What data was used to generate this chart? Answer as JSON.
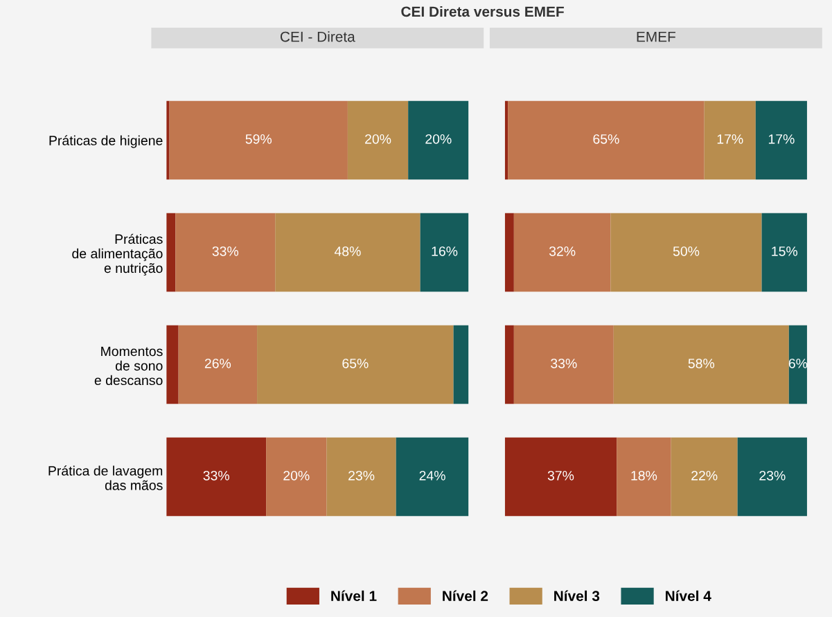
{
  "chart_data": [
    {
      "type": "bar",
      "title": "CEI - Direta",
      "orientation": "horizontal",
      "stacked": true,
      "xlim": [
        0,
        100
      ],
      "tick_labels": "y",
      "legend": "bottom",
      "annotations": [
        "CEI Direta versus EMEF"
      ],
      "categories": [
        "Práticas de higiene",
        "Práticas\nde alimentação\ne nutrição",
        "Momentos\nde sono\ne descanso",
        "Prática de lavagem\ndas mãos"
      ],
      "series": [
        {
          "name": "Nível 1",
          "color": "#962817",
          "values": [
            1,
            3,
            4,
            33
          ],
          "value_labels": [
            null,
            null,
            null,
            "33%"
          ]
        },
        {
          "name": "Nível 2",
          "color": "#c1774f",
          "values": [
            59,
            33,
            26,
            20
          ],
          "value_labels": [
            "59%",
            "33%",
            "26%",
            "20%"
          ]
        },
        {
          "name": "Nível 3",
          "color": "#b88d4e",
          "values": [
            20,
            48,
            65,
            23
          ],
          "value_labels": [
            "20%",
            "48%",
            "65%",
            "23%"
          ]
        },
        {
          "name": "Nível 4",
          "color": "#155c5b",
          "values": [
            20,
            16,
            5,
            24
          ],
          "value_labels": [
            "20%",
            "16%",
            null,
            "24%"
          ]
        }
      ]
    },
    {
      "type": "bar",
      "title": "EMEF",
      "orientation": "horizontal",
      "stacked": true,
      "xlim": [
        0,
        100
      ],
      "tick_labels": false,
      "categories": [
        null,
        null,
        null,
        null
      ],
      "series": [
        {
          "color": "#962817",
          "values": [
            1,
            3,
            3,
            37
          ],
          "value_labels": [
            null,
            null,
            null,
            "37%"
          ]
        },
        {
          "color": "#c1774f",
          "values": [
            65,
            32,
            33,
            18
          ],
          "value_labels": [
            "65%",
            "32%",
            "33%",
            "18%"
          ]
        },
        {
          "color": "#b88d4e",
          "values": [
            17,
            50,
            58,
            22
          ],
          "value_labels": [
            "17%",
            "50%",
            "58%",
            "22%"
          ]
        },
        {
          "color": "#155c5b",
          "values": [
            17,
            15,
            6,
            23
          ],
          "value_labels": [
            "17%",
            "15%",
            "6%",
            "23%"
          ]
        }
      ]
    }
  ]
}
